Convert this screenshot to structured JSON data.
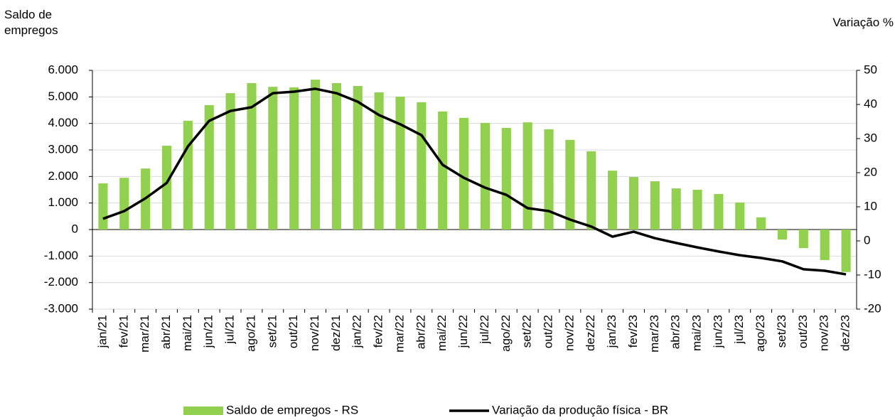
{
  "chart_data": {
    "type": "bar_line",
    "y_label": "Saldo de empregos",
    "y2_label": "Variação %",
    "categories": [
      "jan/21",
      "fev/21",
      "mar/21",
      "abr/21",
      "mai/21",
      "jun/21",
      "jul/21",
      "ago/21",
      "set/21",
      "out/21",
      "nov/21",
      "dez/21",
      "jan/22",
      "fev/22",
      "mar/22",
      "abr/22",
      "mai/22",
      "jun/22",
      "jul/22",
      "ago/22",
      "set/22",
      "out/22",
      "nov/22",
      "dez/22",
      "jan/23",
      "fev/23",
      "mar/23",
      "abr/23",
      "mai/23",
      "jun/23",
      "jul/23",
      "ago/23",
      "set/23",
      "out/23",
      "nov/23",
      "dez/23"
    ],
    "series": [
      {
        "name": "Saldo de empregos - RS",
        "type": "bar",
        "color": "#92d050",
        "values": [
          1740,
          1950,
          2300,
          3160,
          4100,
          4690,
          5140,
          5520,
          5380,
          5360,
          5650,
          5520,
          5410,
          5170,
          5010,
          4800,
          4450,
          4210,
          4020,
          3830,
          4040,
          3780,
          3380,
          2950,
          2220,
          1980,
          1820,
          1550,
          1500,
          1340,
          1020,
          460,
          -375,
          -700,
          -1150,
          -1600
        ]
      },
      {
        "name": "Variação da produção física - BR",
        "type": "line",
        "axis": "y2",
        "color": "#000000",
        "values": [
          6.5,
          8.75,
          12.5,
          17,
          27.7,
          35.2,
          38.1,
          39.2,
          43.3,
          43.75,
          44.6,
          43.3,
          40.8,
          36.9,
          34.2,
          31,
          22.3,
          18.5,
          15.6,
          13.5,
          9.6,
          8.75,
          6.25,
          4.2,
          1.25,
          2.7,
          0.8,
          -0.6,
          -1.9,
          -3.1,
          -4.2,
          -5,
          -6,
          -8.3,
          -8.75,
          -9.8
        ]
      }
    ],
    "ylim": [
      -3000,
      6000
    ],
    "yticks": [
      {
        "value": -3000,
        "label": "-3.000"
      },
      {
        "value": -2000,
        "label": "-2.000"
      },
      {
        "value": -1000,
        "label": "-1.000"
      },
      0,
      {
        "value": 1000,
        "label": "1.000"
      },
      {
        "value": 2000,
        "label": "2.000"
      },
      {
        "value": 3000,
        "label": "3.000"
      },
      {
        "value": 4000,
        "label": "4.000"
      },
      {
        "value": 5000,
        "label": "5.000"
      },
      {
        "value": 6000,
        "label": "6.000"
      }
    ],
    "y2lim": [
      -20,
      50
    ],
    "y2ticks": [
      -20,
      -10,
      0,
      10,
      20,
      30,
      40,
      50
    ],
    "grid": true,
    "legend": "bottom"
  }
}
